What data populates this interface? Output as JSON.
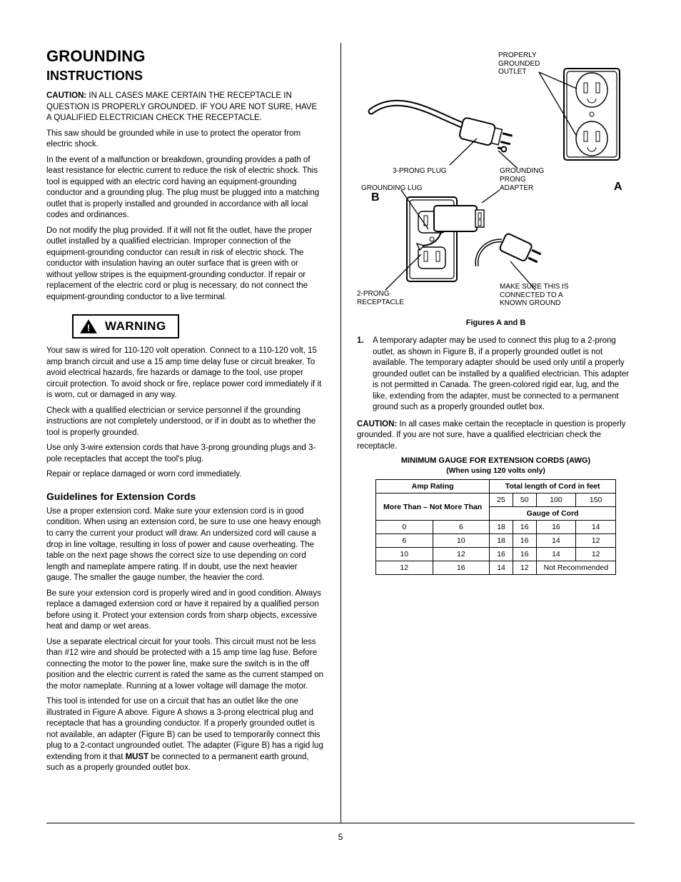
{
  "page_number": "5",
  "left": {
    "title": "GROUNDING",
    "subtitle": "INSTRUCTIONS",
    "caution_head": "CAUTION:",
    "caution_body": " IN ALL CASES MAKE CERTAIN THE RECEPTACLE IN QUESTION IS PROPERLY GROUNDED. IF YOU ARE NOT SURE, HAVE A QUALIFIED ELECTRICIAN CHECK THE RECEPTACLE.",
    "p1": "This saw should be grounded while in use to protect the operator from electric shock.",
    "p2": "In the event of a malfunction or breakdown, grounding provides a path of least resistance for electric current to reduce the risk of electric shock. This tool is equipped with an electric cord having an equipment-grounding conductor and a grounding plug. The plug must be plugged into a matching outlet that is properly installed and grounded in accordance with all local codes and ordinances.",
    "p3": "Do not modify the plug provided. If it will not fit the outlet, have the proper outlet installed by a qualified electrician. Improper connection of the equipment-grounding conductor can result in risk of electric shock. The conductor with insulation having an outer surface that is green with or without yellow stripes is the equipment-grounding conductor. If repair or replacement of the electric cord or plug is necessary, do not connect the equipment-grounding conductor to a live terminal.",
    "warning_label": "WARNING",
    "warning_text": "Your saw is wired for 110-120 volt operation. Connect to a 110-120 volt, 15 amp branch circuit and use a 15 amp time delay fuse or circuit breaker. To avoid electrical hazards, fire hazards or damage to the tool, use proper circuit protection. To avoid shock or fire, replace power cord immediately if it is worn, cut or damaged in any way.",
    "p4": "Check with a qualified electrician or service personnel if the grounding instructions are not completely understood, or if in doubt as to whether the tool is properly grounded.",
    "p5": "Use only 3-wire extension cords that have 3-prong grounding plugs and 3-pole receptacles that accept the tool's plug.",
    "p6": "Repair or replace damaged or worn cord immediately.",
    "guidelines_head": "Guidelines for Extension Cords",
    "g_p1": "Use a proper extension cord. Make sure your extension cord is in good condition. When using an extension cord, be sure to use one heavy enough to carry the current your product will draw. An undersized cord will cause a drop in line voltage, resulting in loss of power and cause overheating. The table on the next page shows the correct size to use depending on cord length and nameplate ampere rating. If in doubt, use the next heavier gauge. The smaller the gauge number, the heavier the cord.",
    "g_p2": "Be sure your extension cord is properly wired and in good condition. Always replace a damaged extension cord or have it repaired by a qualified person before using it. Protect your extension cords from sharp objects, excessive heat and damp or wet areas.",
    "g_p3": "Use a separate electrical circuit for your tools. This circuit must not be less than #12 wire and should be protected with a 15 amp time lag fuse. Before connecting the motor to the power line, make sure the switch is in the off position and the electric current is rated the same as the current stamped on the motor nameplate. Running at a lower voltage will damage the motor.",
    "g_p4a": "This tool is intended for use on a circuit that has an outlet like the one illustrated in Figure A above. Figure A shows a 3-prong electrical plug and receptacle that has a grounding conductor. If a properly grounded outlet is not available, an adapter (Figure B) can be used to temporarily connect this plug to a 2-contact ungrounded outlet. The adapter (Figure B) has a rigid lug extending from it that ",
    "g_p4_bold": "MUST",
    "g_p4b": " be connected to a permanent earth ground, such as a properly grounded outlet box."
  },
  "right": {
    "labels": {
      "grounded_outlets": "PROPERLY\nGROUNDED\nOUTLET",
      "grounding_prong": "GROUNDING\nPRONG",
      "three_prong_plug": "3-PRONG PLUG",
      "grounding_lug": "GROUNDING LUG",
      "adapter": "ADAPTER",
      "two_prong_outlet": "2-PRONG\nRECEPTACLE",
      "screw_label": "MAKE SURE THIS IS\nCONNECTED TO A\nKNOWN GROUND"
    },
    "fig_caption": "Figures A and B",
    "items": [
      "A temporary adapter may be used to connect this plug to a 2-prong outlet, as shown in Figure B, if a properly grounded outlet is not available. The temporary adapter should be used only until a properly grounded outlet can be installed by a qualified electrician. This adapter is not permitted in Canada. The green-colored rigid ear, lug, and the like, extending from the adapter, must be connected to a permanent ground such as a properly grounded outlet box."
    ],
    "caution2_head": "CAUTION:",
    "caution2_body": " In all cases make certain the receptacle in question is properly grounded. If you are not sure, have a qualified electrician check the receptacle.",
    "ext_table": {
      "title": "MINIMUM GAUGE FOR EXTENSION CORDS (AWG)",
      "sub": "(When using 120 volts only)",
      "col1": "Amp Rating",
      "span_head": "Total length of Cord in feet",
      "lengths": [
        "25",
        "50",
        "100",
        "150"
      ],
      "range_head": "More Than – Not More Than",
      "gauge_head": "Gauge of Cord",
      "rows": [
        {
          "low": "0",
          "high": "6",
          "g": [
            "18",
            "16",
            "16",
            "14"
          ]
        },
        {
          "low": "6",
          "high": "10",
          "g": [
            "18",
            "16",
            "14",
            "12"
          ]
        },
        {
          "low": "10",
          "high": "12",
          "g": [
            "16",
            "16",
            "14",
            "12"
          ]
        },
        {
          "low": "12",
          "high": "16",
          "g": [
            "14",
            "12",
            "Not Recommended",
            ""
          ]
        }
      ]
    }
  },
  "colors": {
    "text": "#000000",
    "bg": "#ffffff",
    "rule": "#000000"
  }
}
